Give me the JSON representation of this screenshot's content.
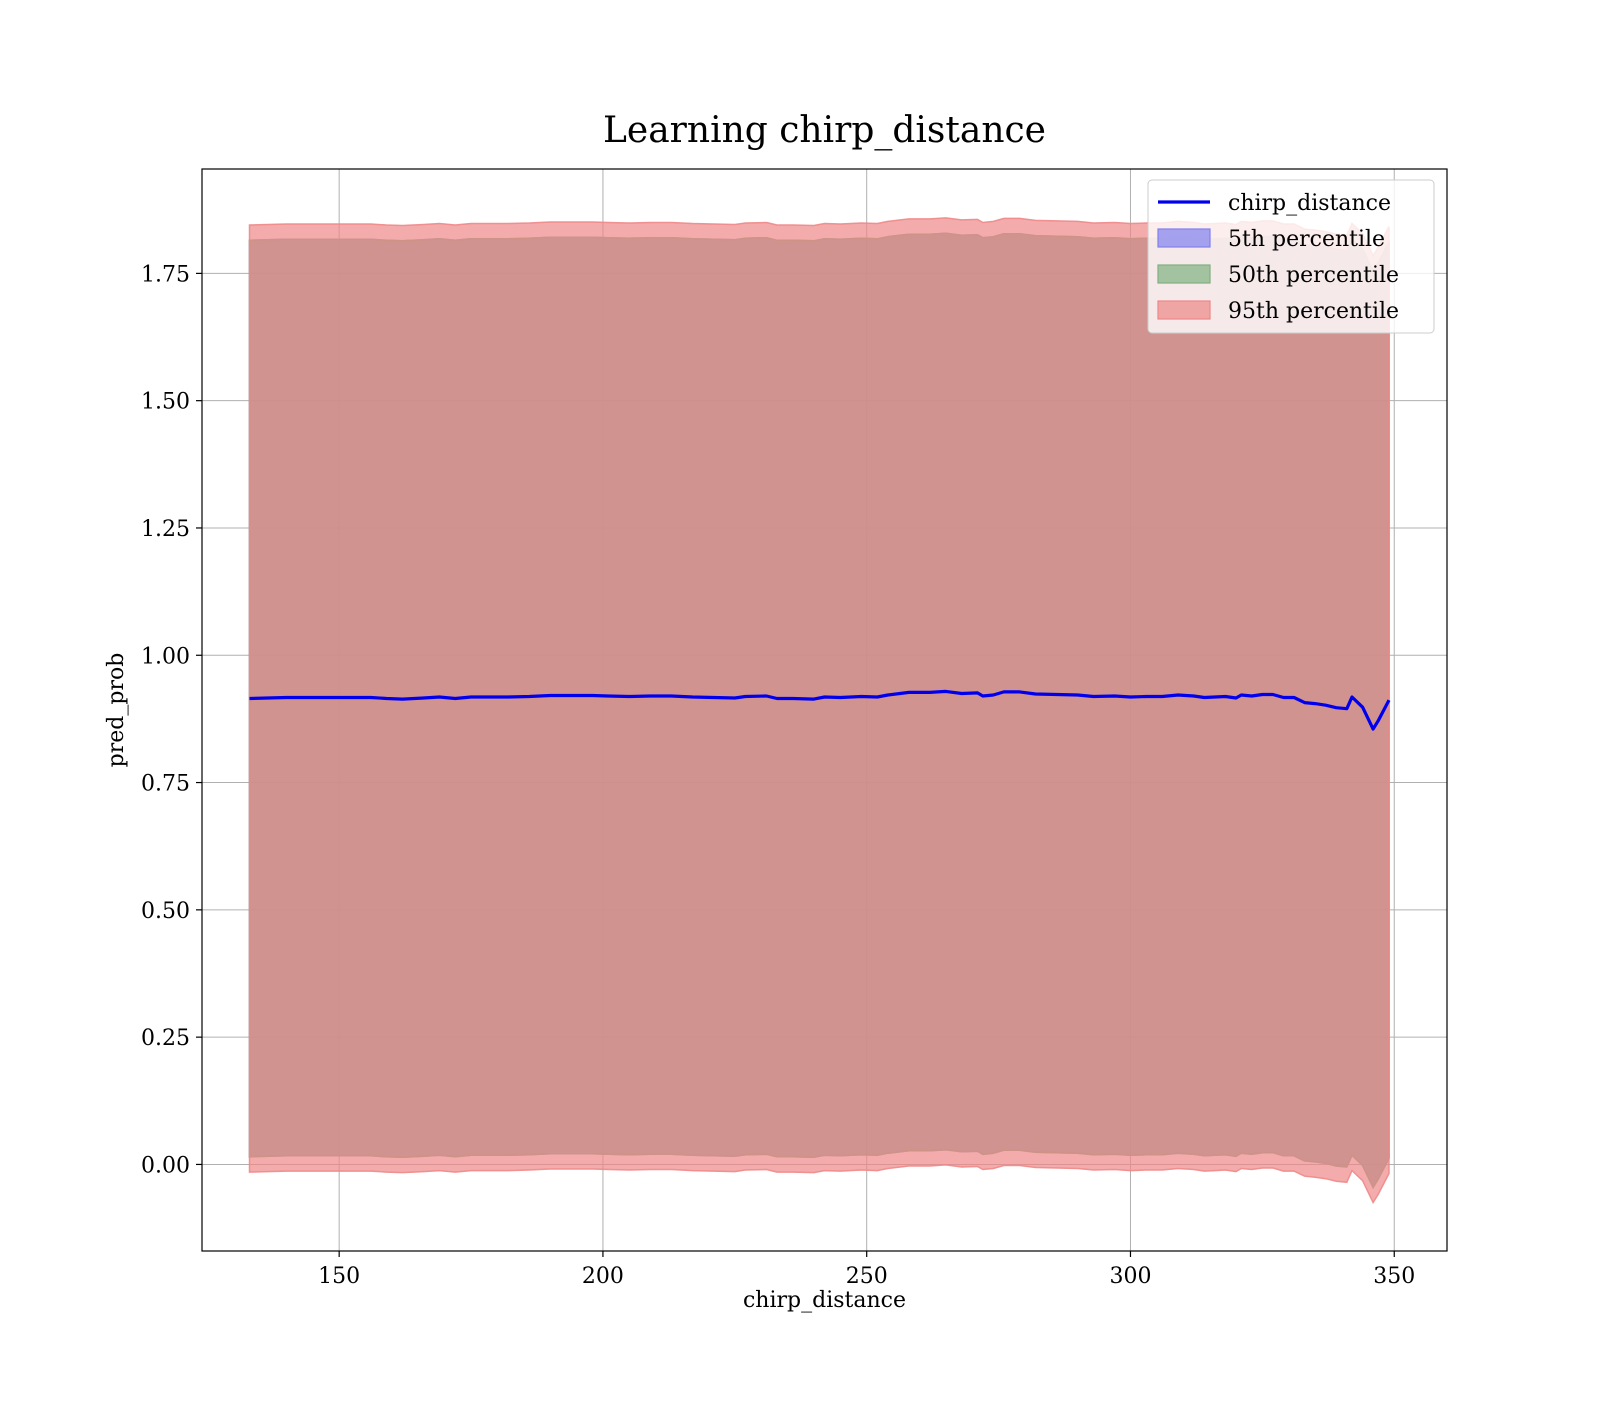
{
  "chart_data": {
    "type": "line",
    "title": "Learning chirp_distance",
    "xlabel": "chirp_distance",
    "ylabel": "pred_prob",
    "xlim": [
      124,
      360
    ],
    "ylim": [
      -0.17,
      1.955
    ],
    "xticks": [
      150,
      200,
      250,
      300,
      350
    ],
    "xtick_labels": [
      "150",
      "200",
      "250",
      "300",
      "350"
    ],
    "yticks": [
      0.0,
      0.25,
      0.5,
      0.75,
      1.0,
      1.25,
      1.5,
      1.75
    ],
    "ytick_labels": [
      "0.00",
      "0.25",
      "0.50",
      "0.75",
      "1.00",
      "1.25",
      "1.50",
      "1.75"
    ],
    "grid": true,
    "legend_position": "top-right",
    "line_color": "#0000ee",
    "band_colors": {
      "5th percentile": "#8080ee",
      "50th percentile": "#80b080",
      "95th percentile": "#ee8888"
    },
    "band_opacity": 0.7,
    "band_halfwidths": {
      "5th percentile": 0.9,
      "50th percentile": 0.9,
      "95th percentile": 0.93
    },
    "band_lower_offset": [
      0.0,
      0.0,
      0.0
    ],
    "x": [
      133,
      140,
      146,
      153,
      156,
      159,
      162,
      166,
      169,
      172,
      175,
      178,
      182,
      186,
      190,
      194,
      198,
      201,
      205,
      209,
      213,
      217,
      221,
      225,
      227,
      231,
      233,
      236,
      240,
      242,
      245,
      249,
      252,
      254,
      258,
      262,
      265,
      268,
      271,
      272,
      274,
      276,
      279,
      282,
      286,
      290,
      293,
      297,
      300,
      303,
      306,
      309,
      312,
      314,
      316,
      318,
      320,
      321,
      323,
      325,
      327,
      329,
      331,
      333,
      335,
      337,
      339,
      341,
      342,
      344,
      346,
      347,
      349
    ],
    "series": [
      {
        "name": "chirp_distance",
        "values": [
          0.915,
          0.917,
          0.917,
          0.917,
          0.917,
          0.915,
          0.914,
          0.916,
          0.918,
          0.915,
          0.918,
          0.918,
          0.918,
          0.919,
          0.921,
          0.921,
          0.921,
          0.92,
          0.919,
          0.92,
          0.92,
          0.918,
          0.917,
          0.916,
          0.919,
          0.92,
          0.915,
          0.915,
          0.914,
          0.918,
          0.917,
          0.919,
          0.918,
          0.922,
          0.927,
          0.927,
          0.929,
          0.925,
          0.926,
          0.92,
          0.922,
          0.928,
          0.928,
          0.924,
          0.923,
          0.922,
          0.919,
          0.92,
          0.918,
          0.919,
          0.919,
          0.922,
          0.92,
          0.917,
          0.918,
          0.919,
          0.916,
          0.922,
          0.92,
          0.923,
          0.923,
          0.917,
          0.917,
          0.907,
          0.905,
          0.902,
          0.897,
          0.895,
          0.918,
          0.898,
          0.855,
          0.872,
          0.912
        ]
      }
    ],
    "legend": [
      "chirp_distance",
      "5th percentile",
      "50th percentile",
      "95th percentile"
    ]
  }
}
